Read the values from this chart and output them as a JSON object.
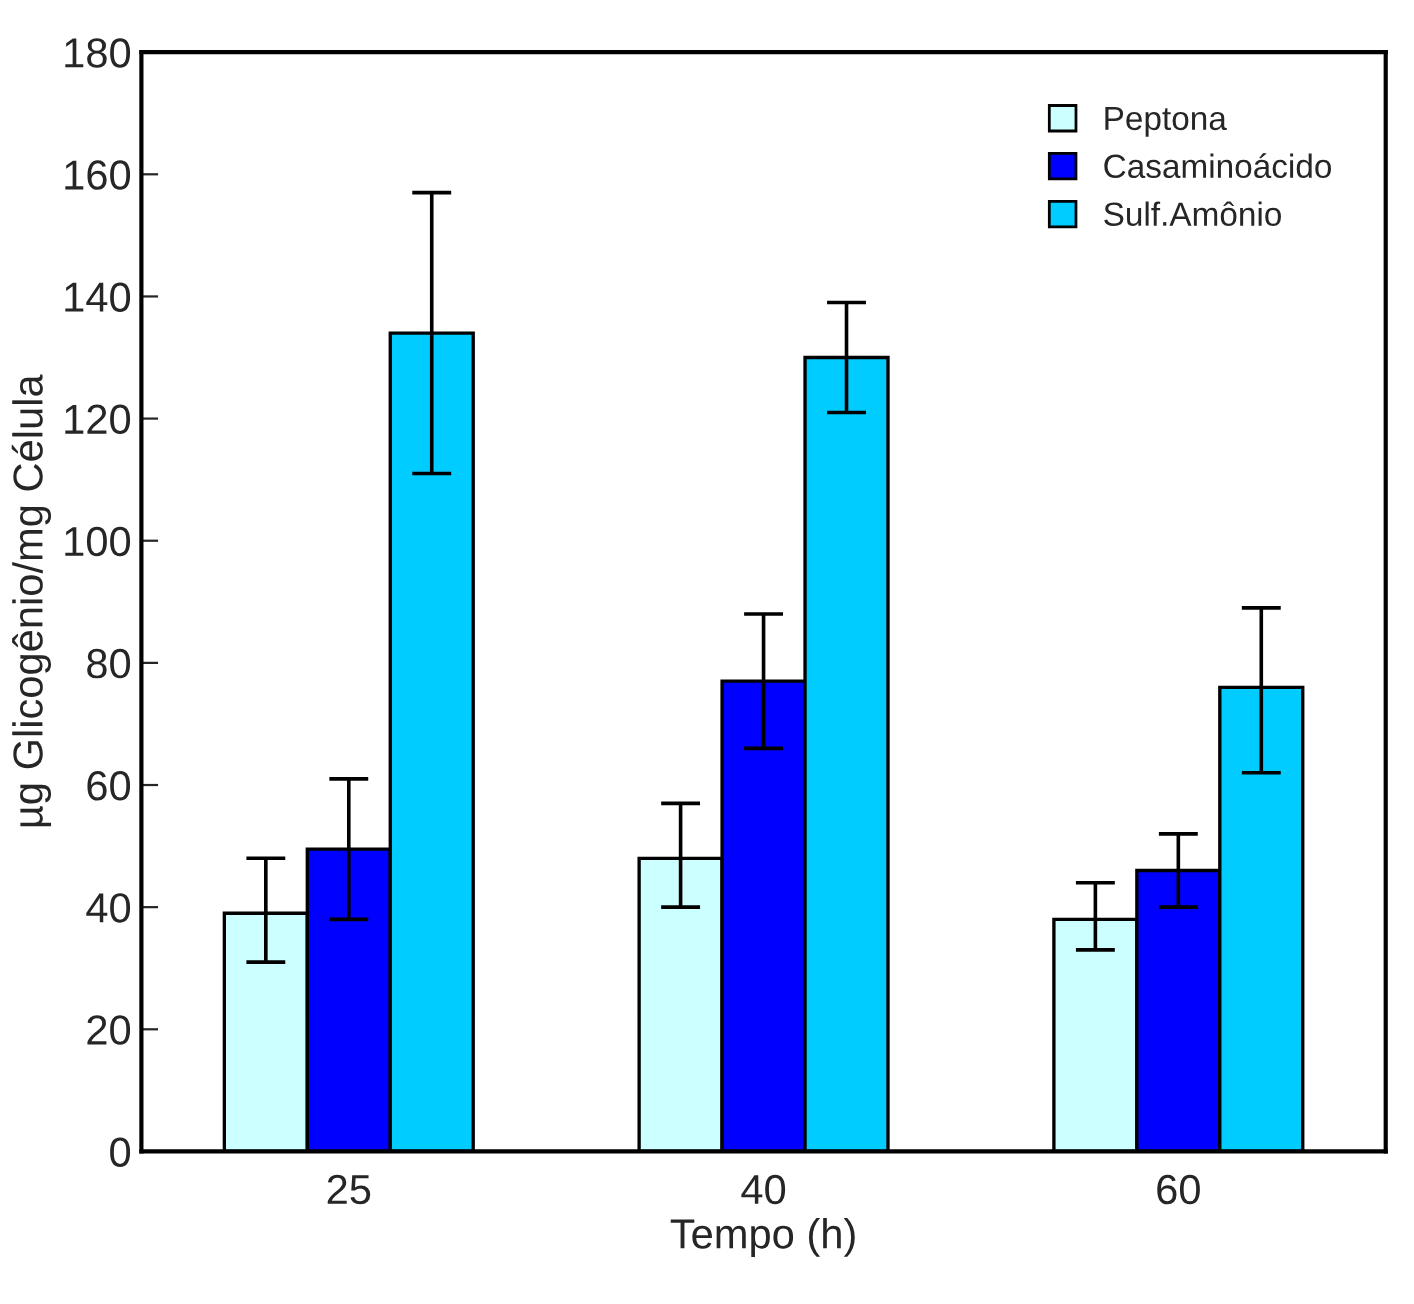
{
  "chart_data": {
    "type": "bar",
    "xlabel": "Tempo (h)",
    "ylabel": "µg Glicogênio/mg Célula",
    "categories": [
      "25",
      "40",
      "60"
    ],
    "series": [
      {
        "name": "Peptona",
        "color": "#ccffff",
        "values": [
          39,
          48,
          38
        ],
        "errors": [
          [
            31,
            48
          ],
          [
            40,
            57
          ],
          [
            33,
            44
          ]
        ]
      },
      {
        "name": "Casaminoácido",
        "color": "#0000ff",
        "values": [
          49.5,
          77,
          46
        ],
        "errors": [
          [
            38,
            61
          ],
          [
            66,
            88
          ],
          [
            40,
            52
          ]
        ]
      },
      {
        "name": "Sulf.Amônio",
        "color": "#00ccff",
        "values": [
          134,
          130,
          76
        ],
        "errors": [
          [
            111,
            157
          ],
          [
            121,
            139
          ],
          [
            62,
            89
          ]
        ]
      }
    ],
    "ylim": [
      0,
      180
    ],
    "yticks": [
      0,
      20,
      40,
      60,
      80,
      100,
      120,
      140,
      160,
      180
    ],
    "grid": false,
    "legend": "top right"
  }
}
